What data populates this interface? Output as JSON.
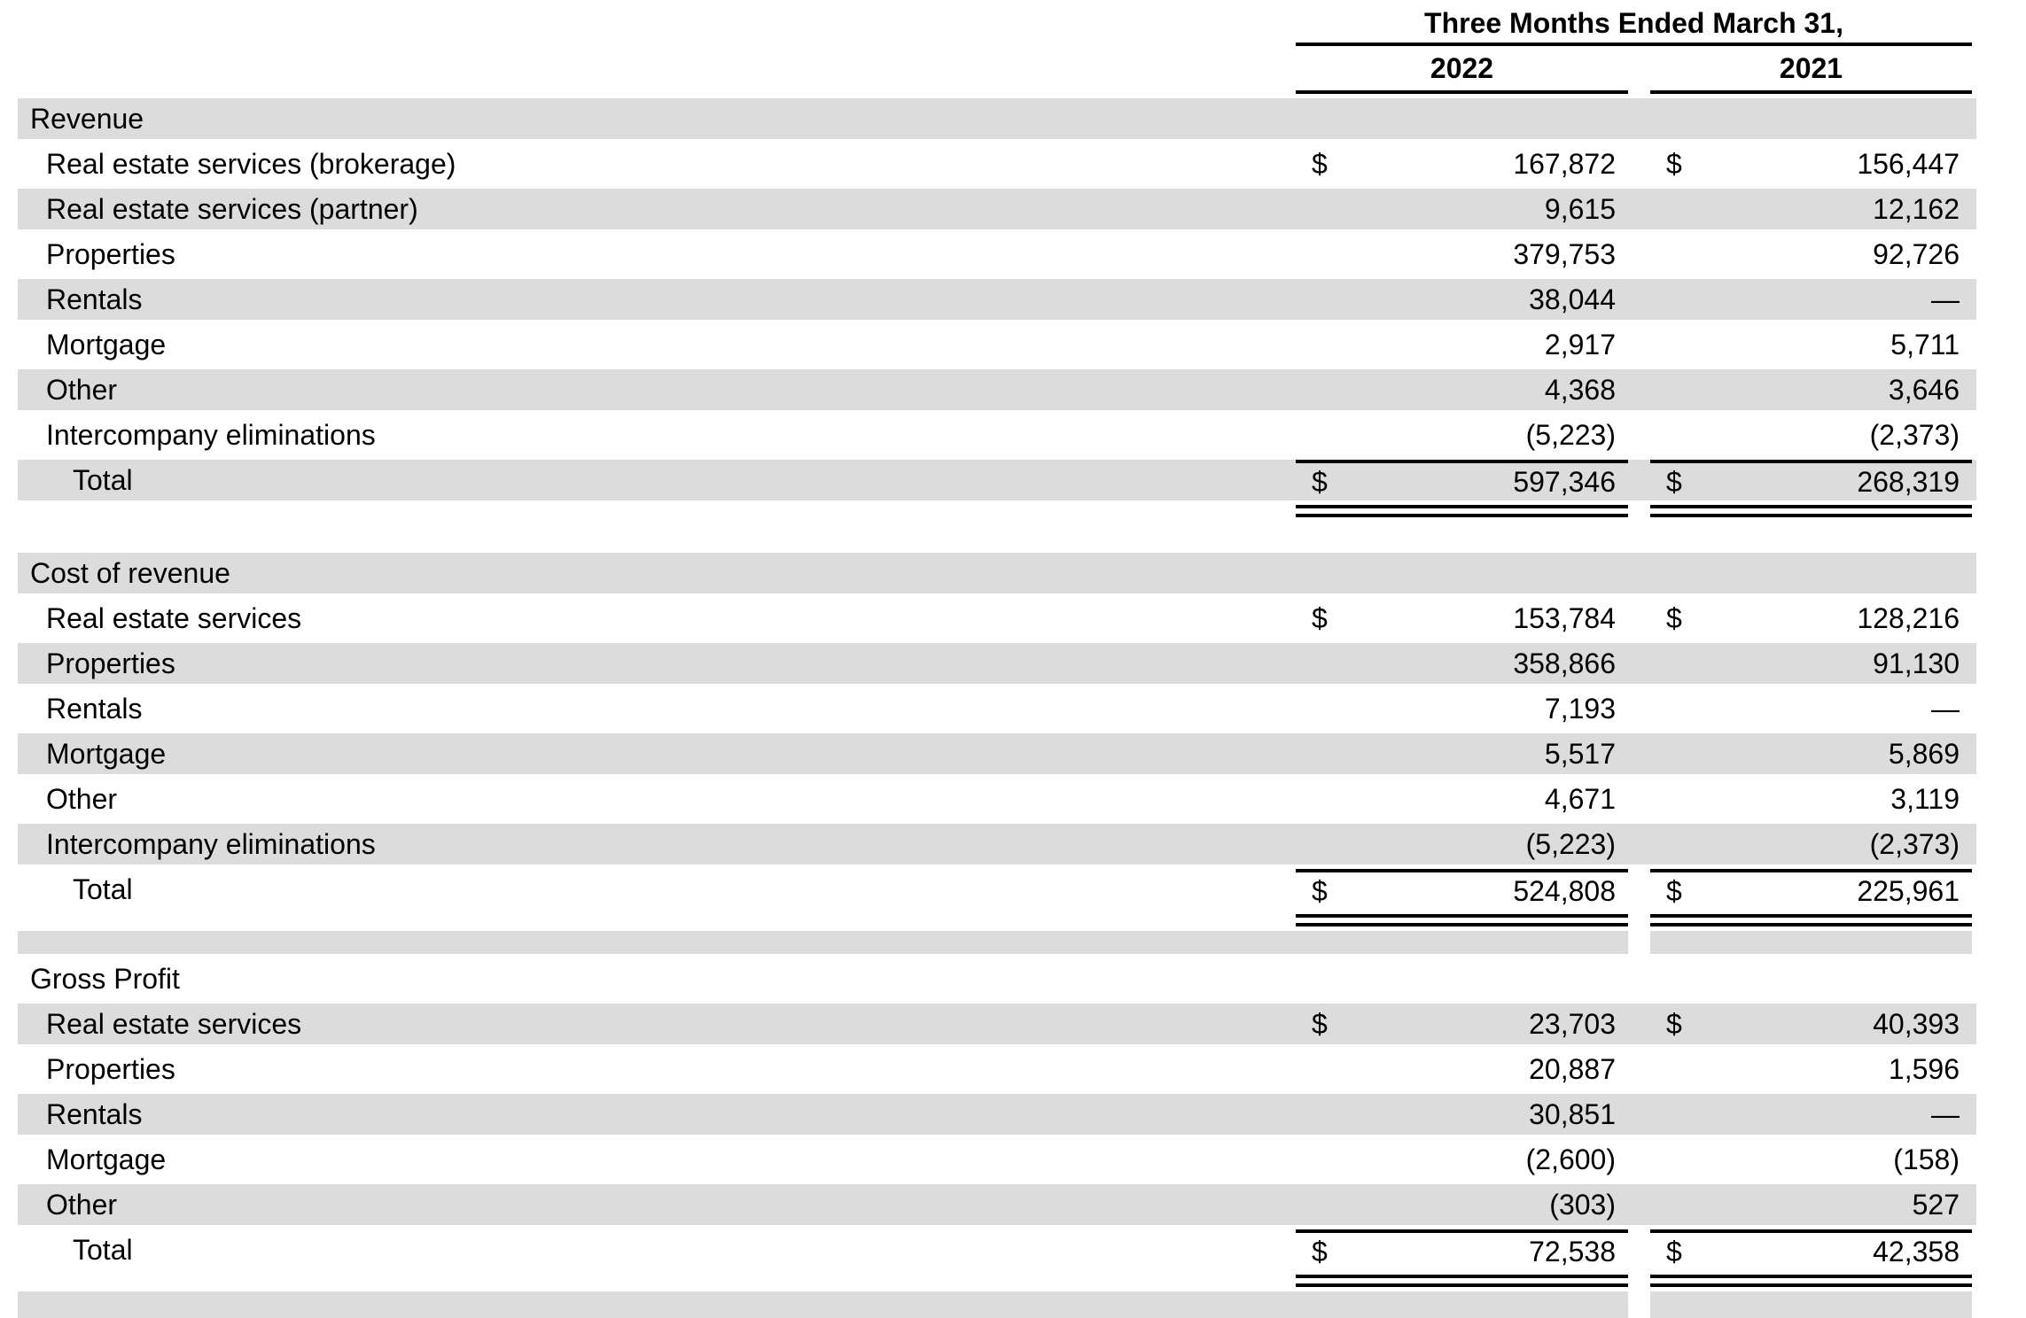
{
  "header": {
    "title": "Three Months Ended March 31,",
    "year_left": "2022",
    "year_right": "2021"
  },
  "colors": {
    "row_shade": "#dcdcdc",
    "rule": "#000000"
  },
  "table": {
    "rows": [
      {
        "type": "section",
        "shaded": true,
        "label": "Revenue"
      },
      {
        "type": "item",
        "shaded": false,
        "label": "Real estate services (brokerage)",
        "cur2022": "$",
        "v2022": "167,872",
        "cur2021": "$",
        "v2021": "156,447"
      },
      {
        "type": "item",
        "shaded": true,
        "label": "Real estate services (partner)",
        "v2022": "9,615",
        "v2021": "12,162"
      },
      {
        "type": "item",
        "shaded": false,
        "label": "Properties",
        "v2022": "379,753",
        "v2021": "92,726"
      },
      {
        "type": "item",
        "shaded": true,
        "label": "Rentals",
        "v2022": "38,044",
        "v2021": "—"
      },
      {
        "type": "item",
        "shaded": false,
        "label": "Mortgage",
        "v2022": "2,917",
        "v2021": "5,711"
      },
      {
        "type": "item",
        "shaded": true,
        "label": "Other",
        "v2022": "4,368",
        "v2021": "3,646"
      },
      {
        "type": "item",
        "shaded": false,
        "label": "Intercompany eliminations",
        "v2022": "(5,223)",
        "v2021": "(2,373)"
      },
      {
        "type": "total",
        "shaded": true,
        "label": "Total",
        "cur2022": "$",
        "v2022": "597,346",
        "cur2021": "$",
        "v2021": "268,319"
      },
      {
        "type": "spacer",
        "shaded": false
      },
      {
        "type": "section",
        "shaded": true,
        "label": "Cost of revenue"
      },
      {
        "type": "item",
        "shaded": false,
        "label": "Real estate services",
        "cur2022": "$",
        "v2022": "153,784",
        "cur2021": "$",
        "v2021": "128,216"
      },
      {
        "type": "item",
        "shaded": true,
        "label": "Properties",
        "v2022": "358,866",
        "v2021": "91,130"
      },
      {
        "type": "item",
        "shaded": false,
        "label": "Rentals",
        "v2022": "7,193",
        "v2021": "—"
      },
      {
        "type": "item",
        "shaded": true,
        "label": "Mortgage",
        "v2022": "5,517",
        "v2021": "5,869"
      },
      {
        "type": "item",
        "shaded": false,
        "label": "Other",
        "v2022": "4,671",
        "v2021": "3,119"
      },
      {
        "type": "item",
        "shaded": true,
        "label": "Intercompany eliminations",
        "v2022": "(5,223)",
        "v2021": "(2,373)"
      },
      {
        "type": "total",
        "shaded": false,
        "label": "Total",
        "cur2022": "$",
        "v2022": "524,808",
        "cur2021": "$",
        "v2021": "225,961"
      },
      {
        "type": "spacer",
        "shaded": true,
        "small": true
      },
      {
        "type": "section",
        "shaded": false,
        "label": "Gross Profit"
      },
      {
        "type": "item",
        "shaded": true,
        "label": "Real estate services",
        "cur2022": "$",
        "v2022": "23,703",
        "cur2021": "$",
        "v2021": "40,393"
      },
      {
        "type": "item",
        "shaded": false,
        "label": "Properties",
        "v2022": "20,887",
        "v2021": "1,596"
      },
      {
        "type": "item",
        "shaded": true,
        "label": "Rentals",
        "v2022": "30,851",
        "v2021": "—"
      },
      {
        "type": "item",
        "shaded": false,
        "label": "Mortgage",
        "v2022": "(2,600)",
        "v2021": "(158)"
      },
      {
        "type": "item",
        "shaded": true,
        "label": "Other",
        "v2022": "(303)",
        "v2021": "527"
      },
      {
        "type": "total",
        "shaded": false,
        "label": "Total",
        "cur2022": "$",
        "v2022": "72,538",
        "cur2021": "$",
        "v2021": "42,358"
      },
      {
        "type": "spacer",
        "shaded": true
      }
    ]
  }
}
